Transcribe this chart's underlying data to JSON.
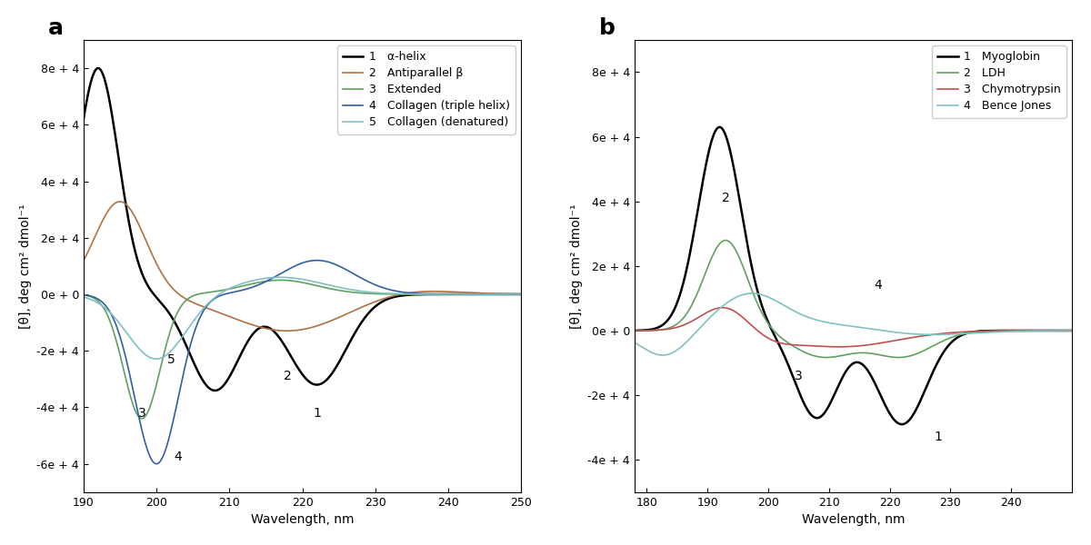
{
  "panel_a": {
    "title": "a",
    "xlabel": "Wavelength, nm",
    "ylabel": "[θ], deg cm² dmol⁻¹",
    "xlim": [
      190,
      250
    ],
    "ylim": [
      -70000,
      90000
    ],
    "yticks": [
      -60000,
      -40000,
      -20000,
      0,
      20000,
      40000,
      60000,
      80000
    ],
    "ytick_labels": [
      "-6e + 4",
      "-4e + 4",
      "-2e + 4",
      "0e + 0",
      "2e + 4",
      "4e + 4",
      "6e + 4",
      "8e + 4"
    ],
    "xticks": [
      190,
      200,
      210,
      220,
      230,
      240,
      250
    ],
    "curves": [
      {
        "label": "α-helix",
        "num": "1",
        "color": "#000000",
        "linewidth": 1.8
      },
      {
        "label": "Antiparallel β",
        "num": "2",
        "color": "#b07040",
        "linewidth": 1.2
      },
      {
        "label": "Extended",
        "num": "3",
        "color": "#60a060",
        "linewidth": 1.2
      },
      {
        "label": "Collagen (triple helix)",
        "num": "4",
        "color": "#3060a0",
        "linewidth": 1.2
      },
      {
        "label": "Collagen (denatured)",
        "num": "5",
        "color": "#80c0c0",
        "linewidth": 1.2
      }
    ],
    "annots": [
      [
        222,
        -42000,
        "1"
      ],
      [
        218,
        -29000,
        "2"
      ],
      [
        198,
        -42000,
        "3"
      ],
      [
        203,
        -57500,
        "4"
      ],
      [
        202,
        -23000,
        "5"
      ]
    ]
  },
  "panel_b": {
    "title": "b",
    "xlabel": "Wavelength, nm",
    "ylabel": "[θ], deg cm² dmol⁻¹",
    "xlim": [
      178,
      250
    ],
    "ylim": [
      -50000,
      90000
    ],
    "yticks": [
      -40000,
      -20000,
      0,
      20000,
      40000,
      60000,
      80000
    ],
    "ytick_labels": [
      "-4e + 4",
      "-2e + 4",
      "0e + 0",
      "2e + 4",
      "4e + 4",
      "6e + 4",
      "8e + 4"
    ],
    "xticks": [
      180,
      190,
      200,
      210,
      220,
      230,
      240
    ],
    "curves": [
      {
        "label": "Myoglobin",
        "num": "1",
        "color": "#000000",
        "linewidth": 1.8
      },
      {
        "label": "LDH",
        "num": "2",
        "color": "#60a060",
        "linewidth": 1.2
      },
      {
        "label": "Chymotrypsin",
        "num": "3",
        "color": "#c05050",
        "linewidth": 1.2
      },
      {
        "label": "Bence Jones",
        "num": "4",
        "color": "#80c0c0",
        "linewidth": 1.2
      }
    ],
    "annots": [
      [
        228,
        -33000,
        "1"
      ],
      [
        193,
        41000,
        "2"
      ],
      [
        205,
        -14000,
        "3"
      ],
      [
        218,
        14000,
        "4"
      ]
    ]
  }
}
